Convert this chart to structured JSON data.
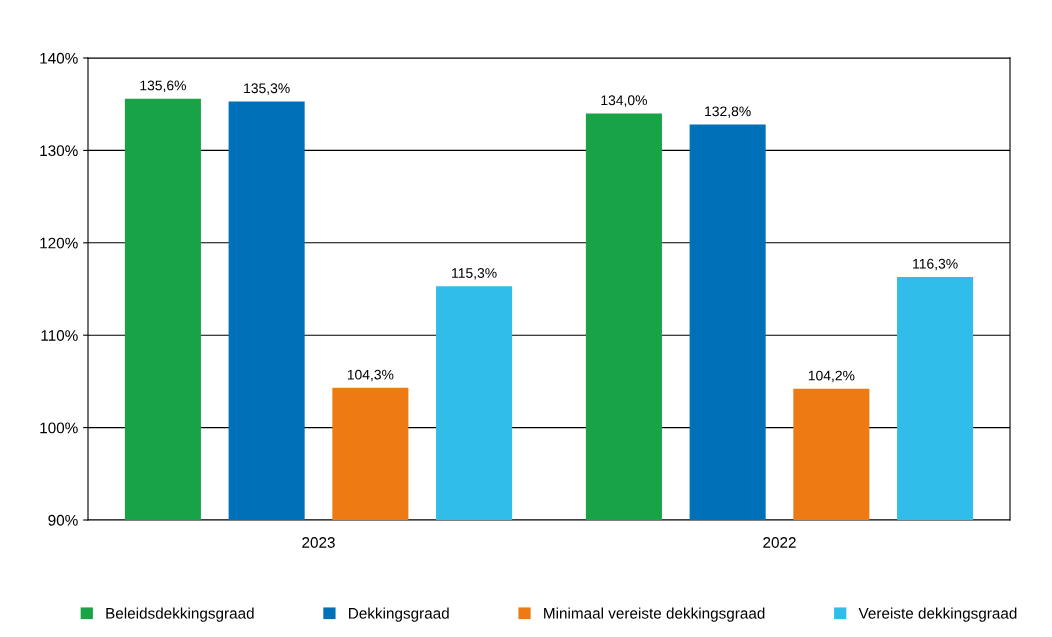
{
  "chart_data": {
    "type": "bar",
    "categories": [
      "2023",
      "2022"
    ],
    "series": [
      {
        "name": "Beleidsdekkingsgraad",
        "color": "#17a346",
        "values": [
          135.6,
          134.0
        ],
        "value_labels": [
          "135,6%",
          "134,0%"
        ]
      },
      {
        "name": "Dekkingsgraad",
        "color": "#0070b8",
        "values": [
          135.3,
          132.8
        ],
        "value_labels": [
          "135,3%",
          "132,8%"
        ]
      },
      {
        "name": "Minimaal vereiste dekkingsgraad",
        "color": "#ee7a14",
        "values": [
          104.3,
          104.2
        ],
        "value_labels": [
          "104,3%",
          "104,2%"
        ]
      },
      {
        "name": "Vereiste dekkingsgraad",
        "color": "#30bde9",
        "values": [
          115.3,
          116.3
        ],
        "value_labels": [
          "115,3%",
          "116,3%"
        ]
      }
    ],
    "ylim": [
      90,
      140
    ],
    "yticks": [
      {
        "value": 90,
        "label": "90%"
      },
      {
        "value": 100,
        "label": "100%"
      },
      {
        "value": 110,
        "label": "110%"
      },
      {
        "value": 120,
        "label": "120%"
      },
      {
        "value": 130,
        "label": "130%"
      },
      {
        "value": 140,
        "label": "140%"
      }
    ],
    "grid": "y",
    "legend": "bottom"
  }
}
